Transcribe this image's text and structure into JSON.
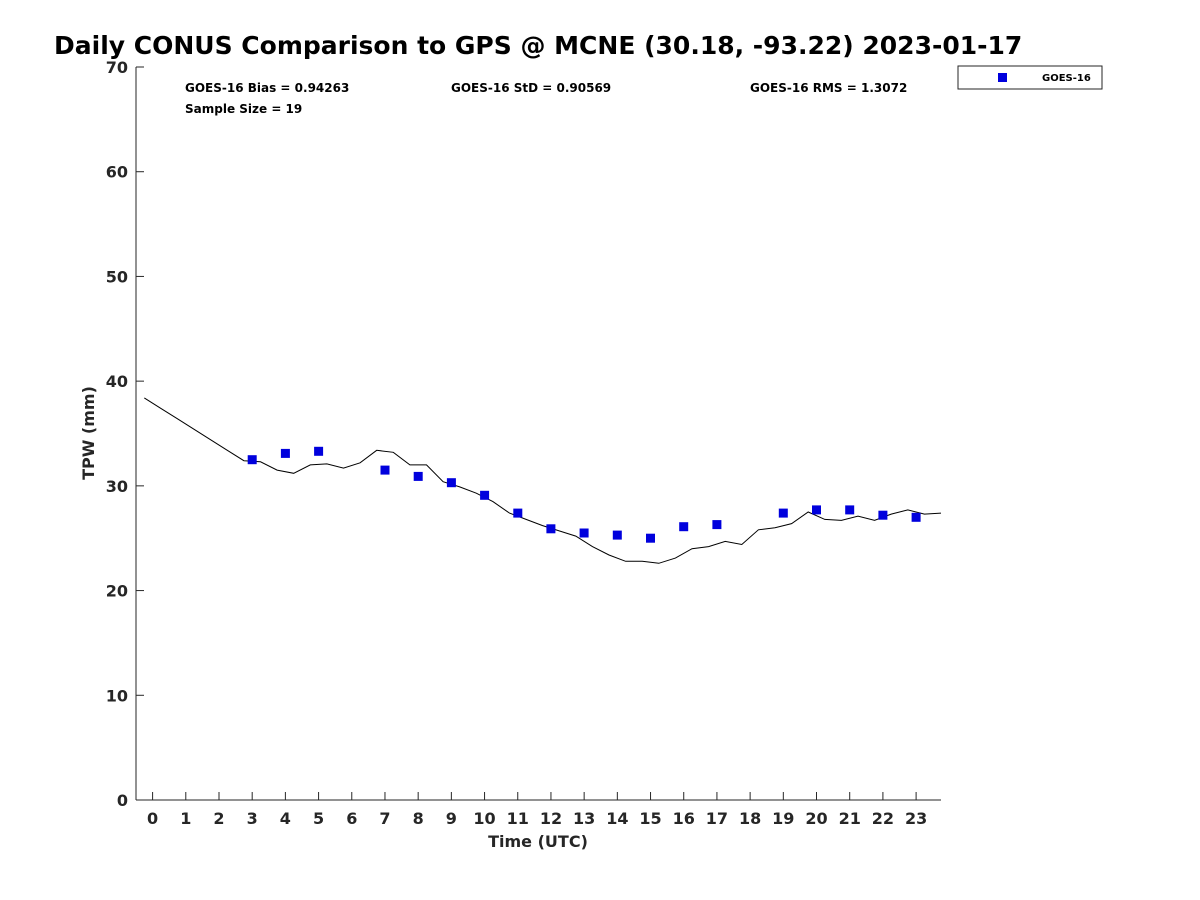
{
  "chart_data": {
    "type": "scatter",
    "title": "Daily CONUS Comparison to GPS @ MCNE (30.18, -93.22) 2023-01-17",
    "xlabel": "Time (UTC)",
    "ylabel": "TPW (mm)",
    "xlim": [
      -0.5,
      23.75
    ],
    "ylim": [
      0,
      70
    ],
    "xticks": [
      "0",
      "1",
      "2",
      "3",
      "4",
      "5",
      "6",
      "7",
      "8",
      "9",
      "10",
      "11",
      "12",
      "13",
      "14",
      "15",
      "16",
      "17",
      "18",
      "19",
      "20",
      "21",
      "22",
      "23"
    ],
    "yticks": [
      "0",
      "10",
      "20",
      "30",
      "40",
      "50",
      "60",
      "70"
    ],
    "grid": false,
    "legend_position": "top-right, outside",
    "stats": {
      "bias": "GOES-16 Bias = 0.94263",
      "std": "GOES-16 StD = 0.90569",
      "rms": "GOES-16 RMS = 1.3072",
      "sample": "Sample Size = 19"
    },
    "series": [
      {
        "name": "GOES-16",
        "kind": "scatter",
        "marker": "square",
        "color": "#0000dd",
        "x": [
          3,
          4,
          5,
          7,
          8,
          9,
          10,
          11,
          12,
          13,
          14,
          15,
          16,
          17,
          19,
          20,
          21,
          22,
          23
        ],
        "y": [
          32.5,
          33.1,
          33.3,
          31.5,
          30.9,
          30.3,
          29.1,
          27.4,
          25.9,
          25.5,
          25.3,
          25.0,
          26.1,
          26.3,
          27.4,
          27.7,
          27.7,
          27.2,
          27.0
        ]
      },
      {
        "kind": "line",
        "color": "#000000",
        "x": [
          -0.25,
          0.25,
          0.75,
          1.25,
          1.75,
          2.25,
          2.75,
          3.25,
          3.75,
          4.25,
          4.75,
          5.25,
          5.75,
          6.25,
          6.75,
          7.25,
          7.75,
          8.25,
          8.75,
          9.25,
          9.75,
          10.25,
          10.75,
          11.25,
          11.75,
          12.25,
          12.75,
          13.25,
          13.75,
          14.25,
          14.75,
          15.25,
          15.75,
          16.25,
          16.75,
          17.25,
          17.75,
          18.25,
          18.75,
          19.25,
          19.75,
          20.25,
          20.75,
          21.25,
          21.75,
          22.25,
          22.75,
          23.25,
          23.75
        ],
        "y": [
          38.4,
          37.4,
          36.4,
          35.4,
          34.4,
          33.4,
          32.4,
          32.3,
          31.5,
          31.2,
          32.0,
          32.1,
          31.7,
          32.2,
          33.4,
          33.2,
          32.0,
          32.0,
          30.4,
          29.9,
          29.3,
          28.5,
          27.4,
          26.8,
          26.2,
          25.7,
          25.2,
          24.2,
          23.4,
          22.8,
          22.8,
          22.6,
          23.1,
          24.0,
          24.2,
          24.7,
          24.4,
          25.8,
          26.0,
          26.4,
          27.5,
          26.8,
          26.7,
          27.1,
          26.7,
          27.3,
          27.7,
          27.3,
          27.4
        ]
      }
    ]
  }
}
